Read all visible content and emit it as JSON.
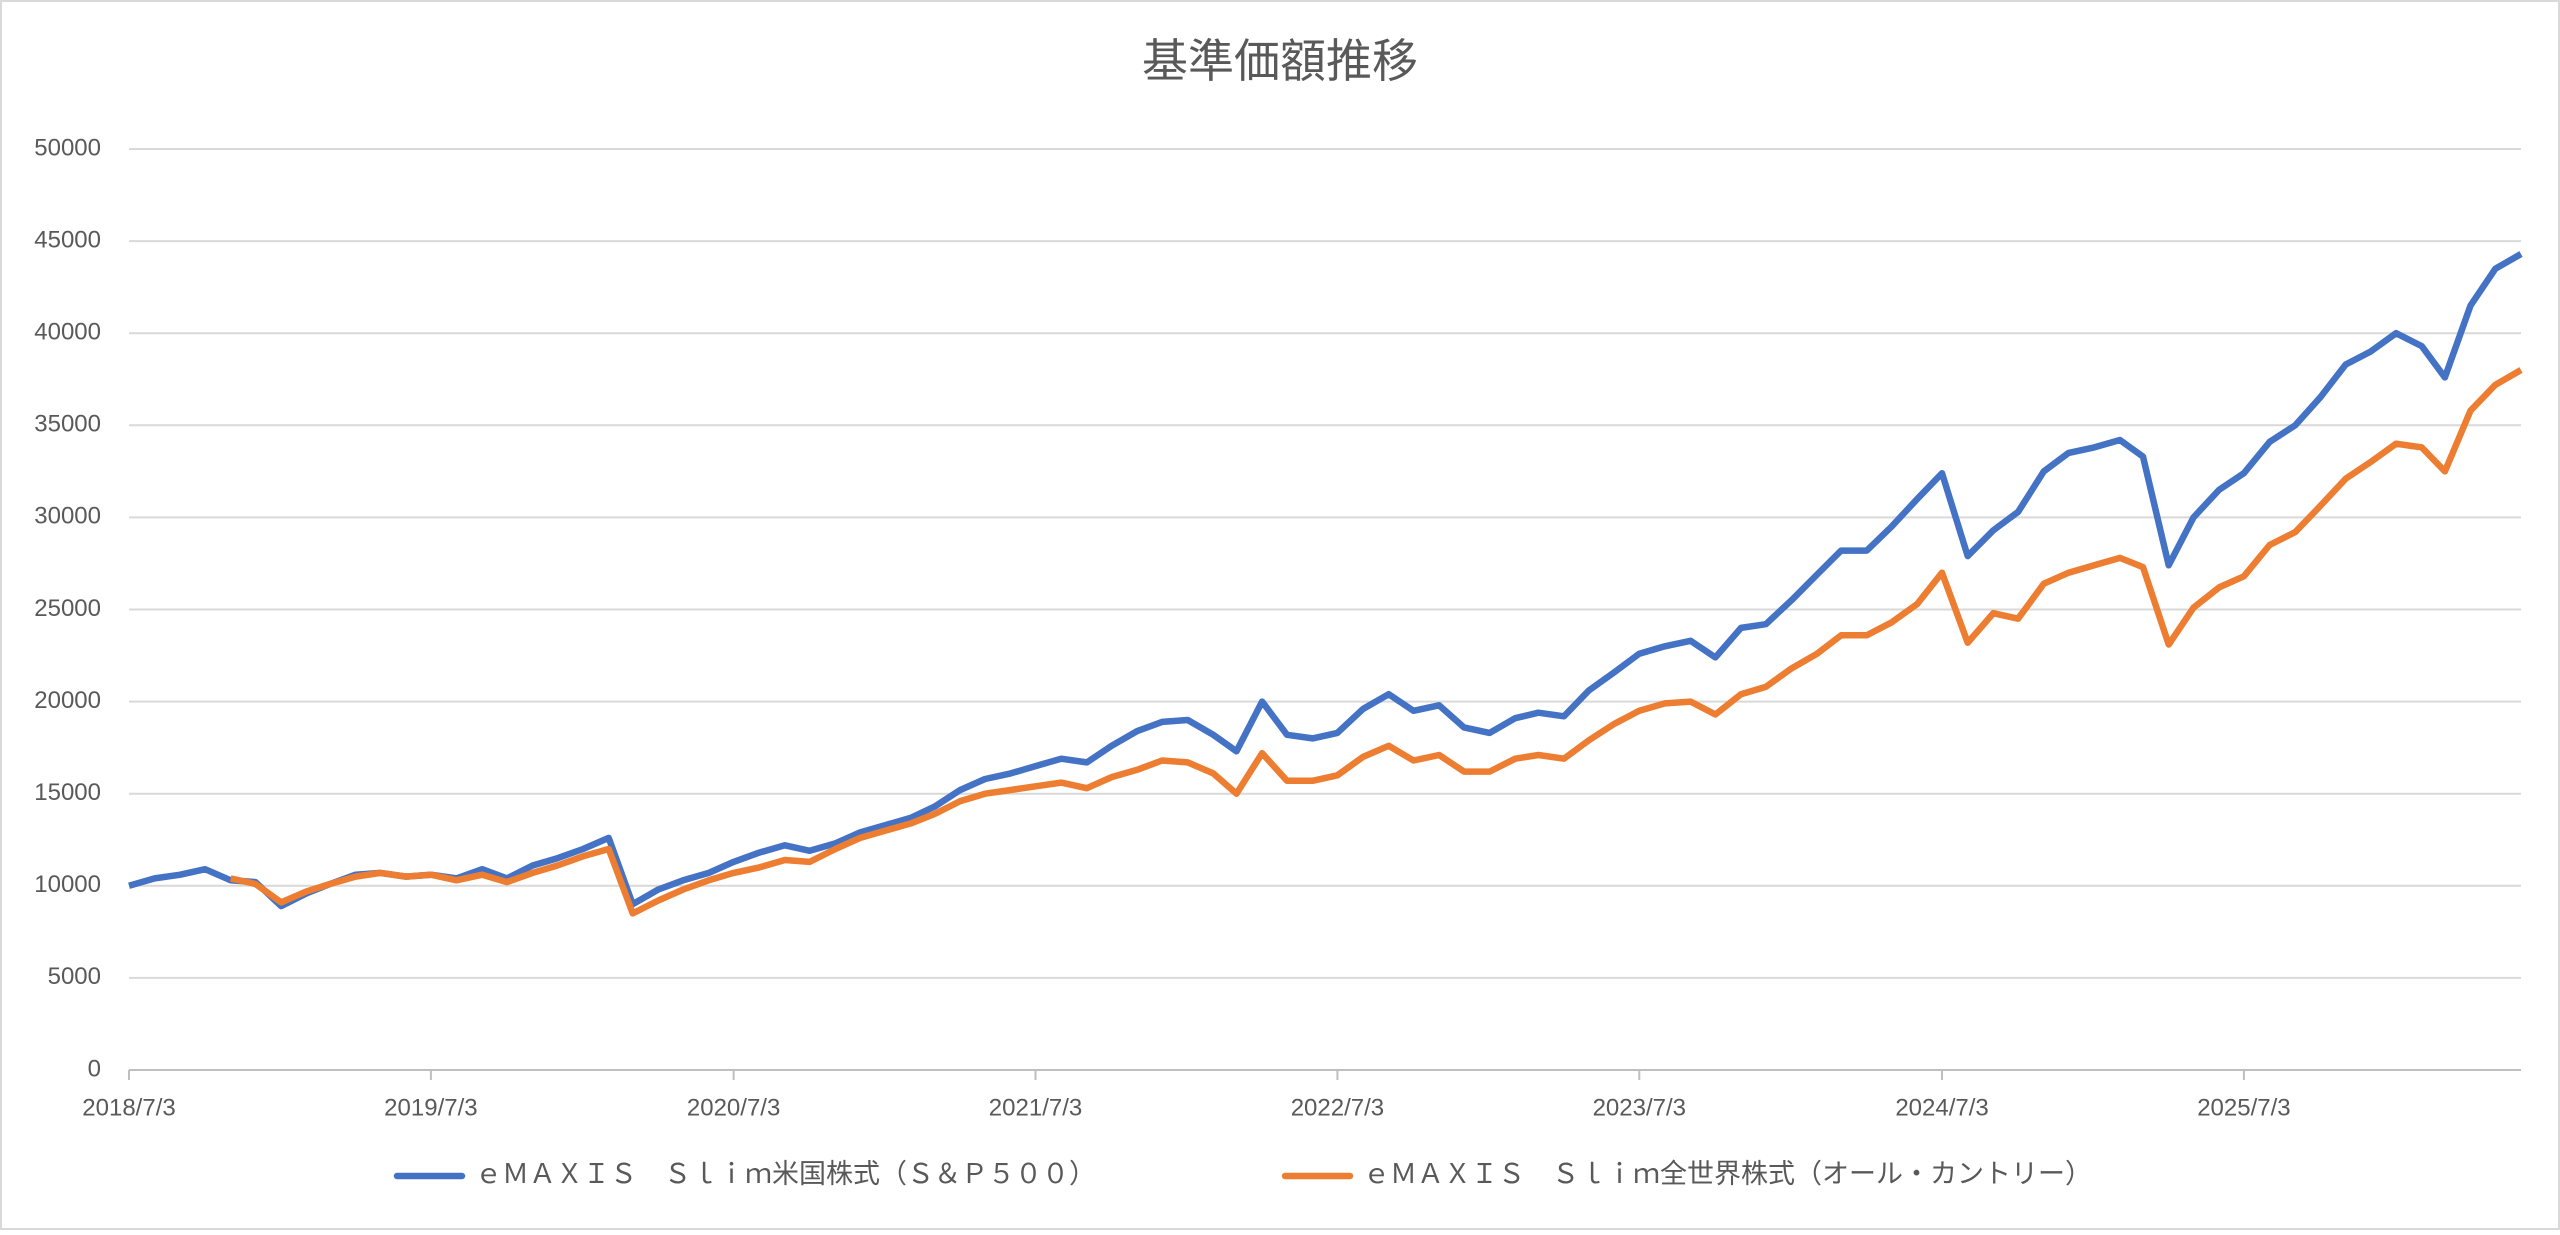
{
  "chart_data": {
    "type": "line",
    "title": "基準価額推移",
    "x": [
      "2018/7/3",
      "2018/8/3",
      "2018/9/3",
      "2018/10/3",
      "2018/11/3",
      "2018/12/3",
      "2019/1/3",
      "2019/2/3",
      "2019/3/3",
      "2019/4/3",
      "2019/5/3",
      "2019/6/3",
      "2019/7/3",
      "2019/8/3",
      "2019/9/3",
      "2019/10/3",
      "2019/11/3",
      "2019/12/3",
      "2020/1/3",
      "2020/2/3",
      "2020/3/3",
      "2020/4/3",
      "2020/5/3",
      "2020/6/3",
      "2020/7/3",
      "2020/8/3",
      "2020/9/3",
      "2020/10/3",
      "2020/11/3",
      "2020/12/3",
      "2021/1/3",
      "2021/2/3",
      "2021/3/3",
      "2021/4/3",
      "2021/5/3",
      "2021/6/3",
      "2021/7/3",
      "2021/8/3",
      "2021/9/3",
      "2021/10/3",
      "2021/11/3",
      "2021/12/3",
      "2022/1/3",
      "2022/2/3",
      "2022/3/3",
      "2022/4/3",
      "2022/5/3",
      "2022/6/3",
      "2022/7/3",
      "2022/8/3",
      "2022/9/3",
      "2022/10/3",
      "2022/11/3",
      "2022/12/3",
      "2023/1/3",
      "2023/2/3",
      "2023/3/3",
      "2023/4/3",
      "2023/5/3",
      "2023/6/3",
      "2023/7/3",
      "2023/8/3",
      "2023/9/3",
      "2023/10/3",
      "2023/11/3",
      "2023/12/3",
      "2024/1/3",
      "2024/2/3",
      "2024/3/3",
      "2024/4/3",
      "2024/5/3",
      "2024/6/3",
      "2024/7/3",
      "2024/8/3",
      "2024/9/3",
      "2024/10/3",
      "2024/11/3",
      "2024/12/3",
      "2025/1/3",
      "2025/2/3",
      "2025/3/3",
      "2025/4/3",
      "2025/5/3",
      "2025/6/3",
      "2025/7/3",
      "2025/8/3",
      "2025/9/3",
      "2025/10/3",
      "2025/11/3",
      "2025/12/3",
      "2026/1/3",
      "2026/2/3",
      "2026/3/3",
      "2026/4/3",
      "2026/5/3",
      "2026/6/3"
    ],
    "series": [
      {
        "name": "ｅＭＡＸＩＳ　Ｓｌｉｍ米国株式（Ｓ＆Ｐ５００）",
        "color": "#4472c4",
        "values": [
          10000,
          10400,
          10600,
          10900,
          10300,
          10200,
          8900,
          9600,
          10100,
          10600,
          10700,
          10500,
          10600,
          10400,
          10900,
          10400,
          11100,
          11500,
          12000,
          12600,
          9000,
          9800,
          10300,
          10700,
          11300,
          11800,
          12200,
          11900,
          12300,
          12900,
          13300,
          13700,
          14300,
          15200,
          15800,
          16100,
          16500,
          16900,
          16700,
          17600,
          18400,
          18900,
          19000,
          18200,
          17300,
          20000,
          18200,
          18000,
          18300,
          19600,
          20400,
          19500,
          19800,
          18600,
          18300,
          19100,
          19400,
          19200,
          20600,
          21600,
          22600,
          23000,
          23300,
          22400,
          24000,
          24200,
          25500,
          26900,
          28200,
          28200,
          29500,
          31000,
          32400,
          27900,
          29300,
          30300,
          32500,
          33500,
          33800,
          34200,
          33300,
          27400,
          30000,
          31500,
          32400,
          34100,
          35000,
          36500,
          38300,
          39000,
          40000,
          39300,
          37600,
          41500,
          43500,
          44300
        ]
      },
      {
        "name": "ｅＭＡＸＩＳ　Ｓｌｉｍ全世界株式（オール・カントリー）",
        "color": "#ed7d31",
        "values": [
          null,
          null,
          null,
          null,
          10400,
          10100,
          9100,
          9700,
          10100,
          10500,
          10700,
          10500,
          10600,
          10300,
          10600,
          10200,
          10700,
          11100,
          11600,
          12000,
          8500,
          9200,
          9800,
          10300,
          10700,
          11000,
          11400,
          11300,
          12000,
          12600,
          13000,
          13400,
          13900,
          14600,
          15000,
          15200,
          15400,
          15600,
          15300,
          15900,
          16300,
          16800,
          16700,
          16100,
          15000,
          17200,
          15700,
          15700,
          16000,
          17000,
          17600,
          16800,
          17100,
          16200,
          16200,
          16900,
          17100,
          16900,
          17900,
          18800,
          19500,
          19900,
          20000,
          19300,
          20400,
          20800,
          21800,
          22600,
          23600,
          23600,
          24300,
          25300,
          27000,
          23200,
          24800,
          24500,
          26400,
          27000,
          27400,
          27800,
          27300,
          23100,
          25100,
          26200,
          26800,
          28500,
          29200,
          30600,
          32100,
          33000,
          34000,
          33800,
          32500,
          35800,
          37200,
          38000
        ]
      }
    ],
    "xlim": [
      "2018/7/3",
      "2026/6/3"
    ],
    "xticks": [
      "2018/7/3",
      "2019/7/3",
      "2020/7/3",
      "2021/7/3",
      "2022/7/3",
      "2023/7/3",
      "2024/7/3",
      "2025/7/3"
    ],
    "ylim": [
      0,
      50000
    ],
    "yticks": [
      0,
      5000,
      10000,
      15000,
      20000,
      25000,
      30000,
      35000,
      40000,
      45000,
      50000
    ],
    "grid": true,
    "legend": "bottom"
  }
}
